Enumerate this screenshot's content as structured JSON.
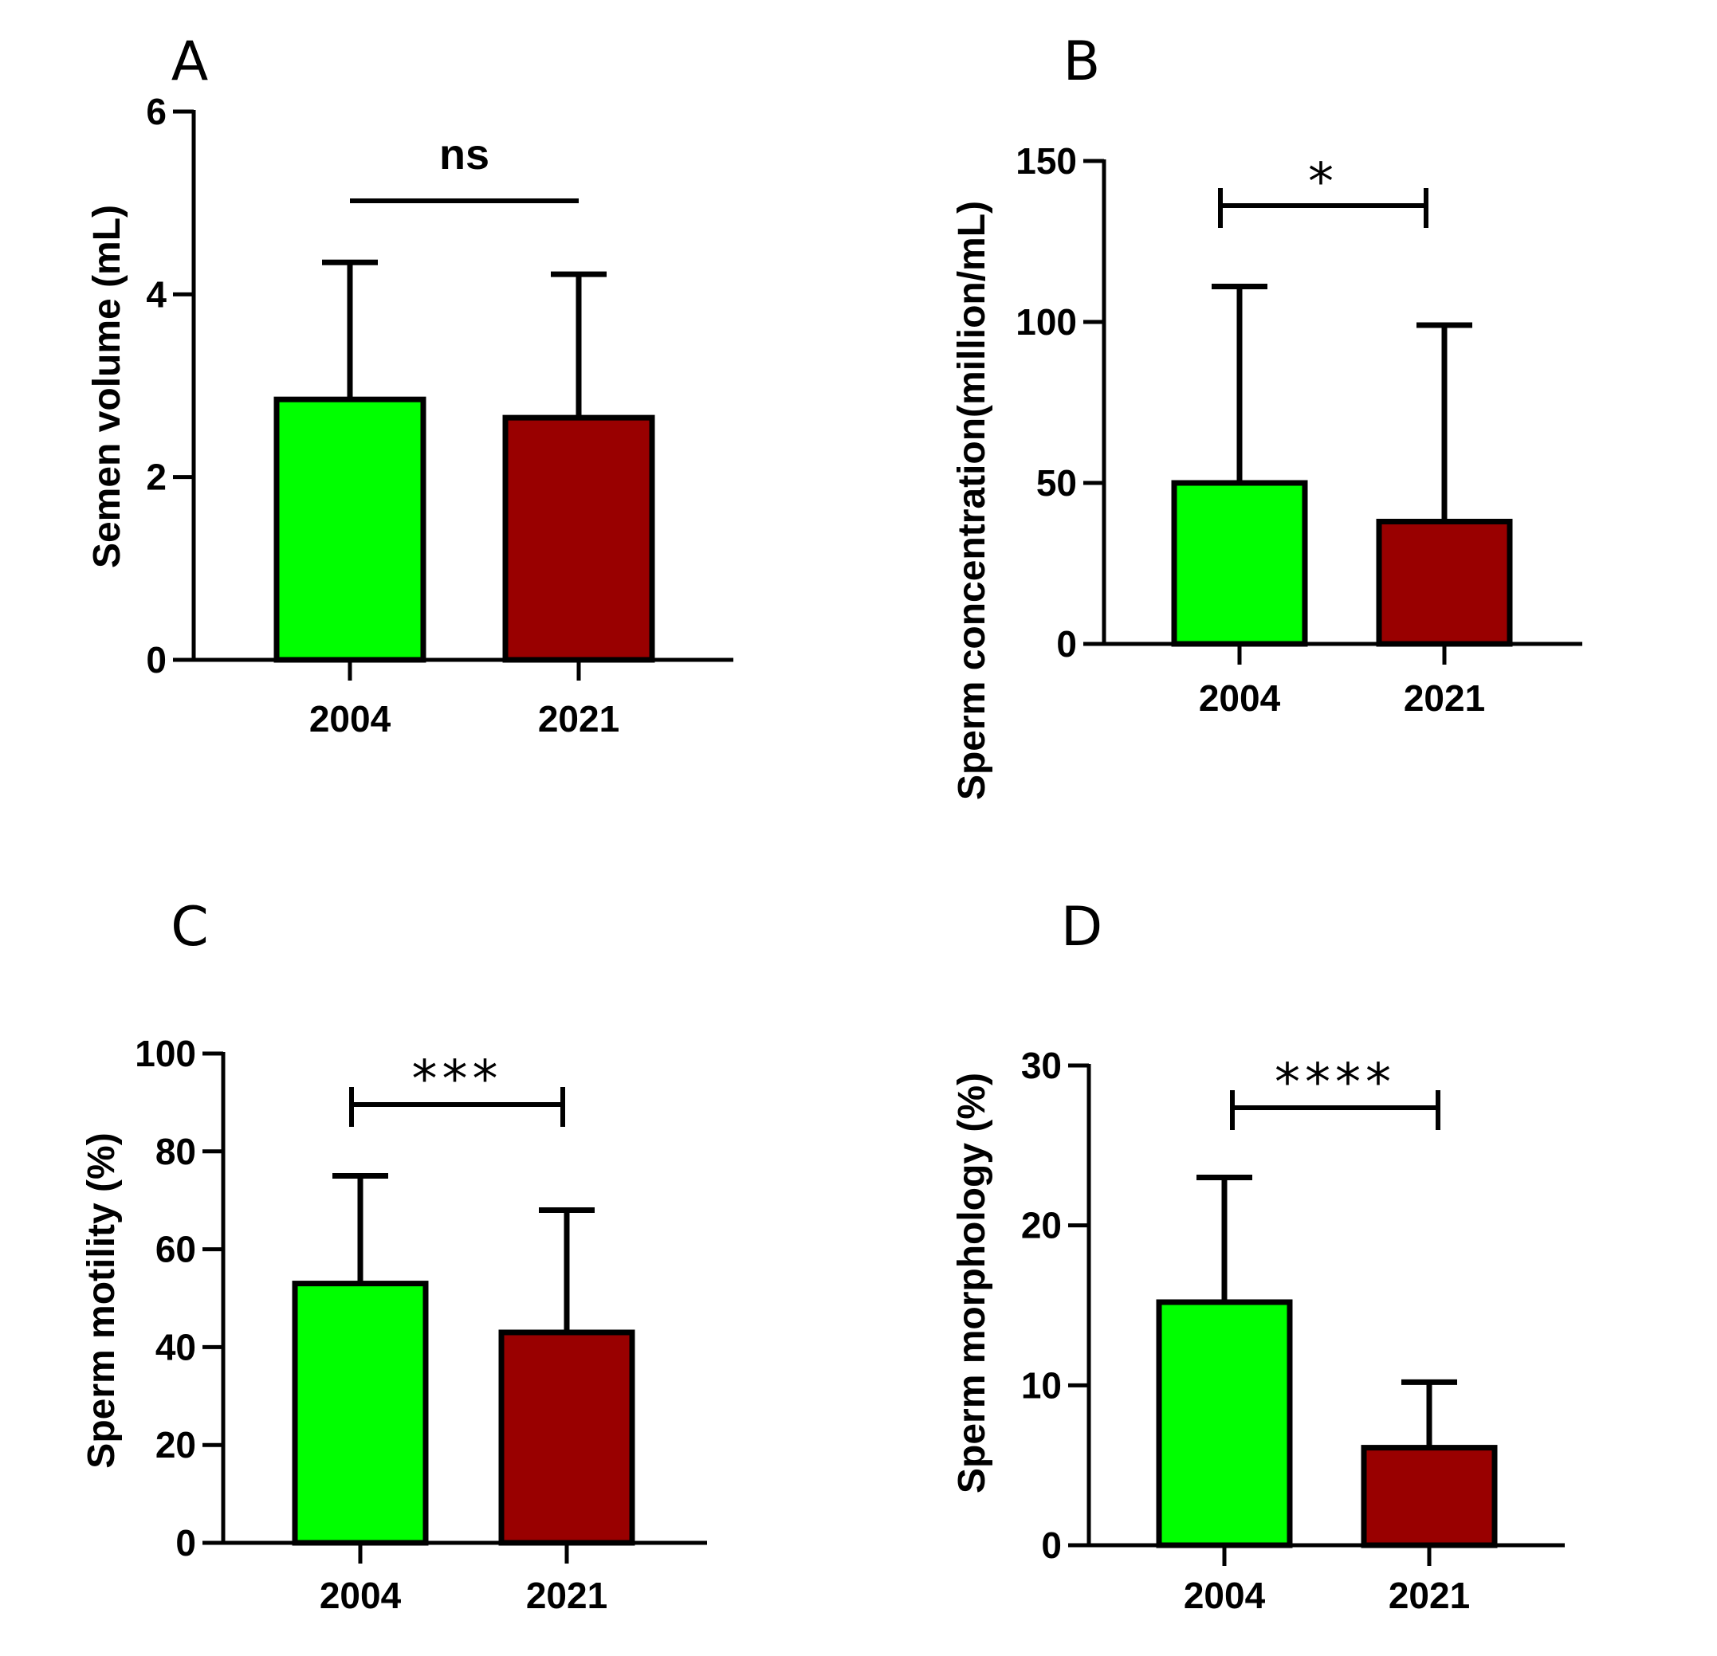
{
  "chart_data": [
    {
      "panel": "A",
      "type": "bar",
      "ylabel": "Semen volume (mL)",
      "xlabel": "",
      "categories": [
        "2004",
        "2021"
      ],
      "values": [
        2.85,
        2.65
      ],
      "errors": [
        1.5,
        1.57
      ],
      "ylim": [
        0,
        6
      ],
      "yticks": [
        "0",
        "2",
        "4",
        "6"
      ],
      "colors": [
        "#00ff00",
        "#990000"
      ],
      "significance": {
        "label": "ns",
        "style": "line"
      }
    },
    {
      "panel": "B",
      "type": "bar",
      "ylabel": "Sperm concentration(million/mL)",
      "xlabel": "",
      "categories": [
        "2004",
        "2021"
      ],
      "values": [
        50,
        38
      ],
      "errors": [
        61,
        61
      ],
      "ylim": [
        0,
        150
      ],
      "yticks": [
        "0",
        "50",
        "100",
        "150"
      ],
      "colors": [
        "#00ff00",
        "#990000"
      ],
      "significance": {
        "label": "*",
        "style": "bracket"
      }
    },
    {
      "panel": "C",
      "type": "bar",
      "ylabel": "Sperm motility (%)",
      "xlabel": "",
      "categories": [
        "2004",
        "2021"
      ],
      "values": [
        53,
        43
      ],
      "errors": [
        22,
        25
      ],
      "ylim": [
        0,
        100
      ],
      "yticks": [
        "0",
        "20",
        "40",
        "60",
        "80",
        "100"
      ],
      "colors": [
        "#00ff00",
        "#990000"
      ],
      "significance": {
        "label": "***",
        "style": "bracket"
      }
    },
    {
      "panel": "D",
      "type": "bar",
      "ylabel": "Sperm morphology (%)",
      "xlabel": "",
      "categories": [
        "2004",
        "2021"
      ],
      "values": [
        15.2,
        6.1
      ],
      "errors": [
        7.8,
        4.1
      ],
      "ylim": [
        0,
        30
      ],
      "yticks": [
        "0",
        "10",
        "20",
        "30"
      ],
      "colors": [
        "#00ff00",
        "#990000"
      ],
      "significance": {
        "label": "****",
        "style": "bracket"
      }
    }
  ]
}
